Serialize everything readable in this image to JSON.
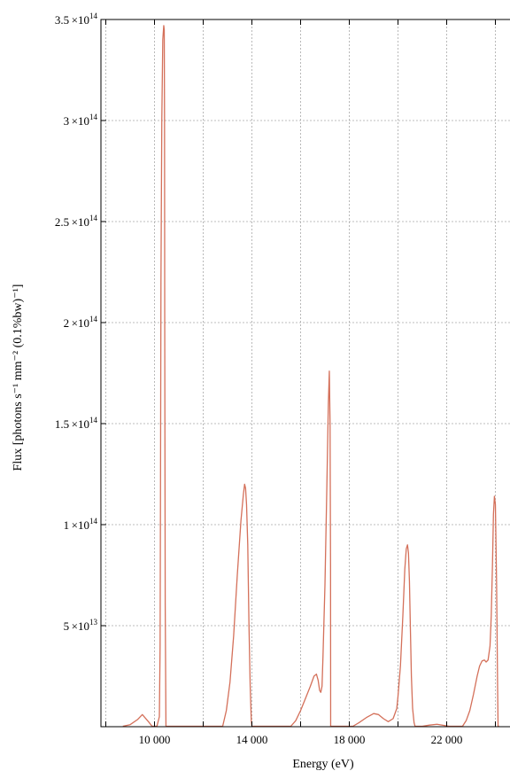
{
  "chart_data": {
    "type": "line",
    "xlabel": "Energy (eV)",
    "ylabel": "Flux [photons s⁻¹ mm⁻² (0.1%bw)⁻¹]",
    "xlim": [
      7800,
      24600
    ],
    "ylim": [
      0,
      350000000000000.0
    ],
    "grid": true,
    "x_ticks": [
      {
        "value": 10000,
        "label": "10 000"
      },
      {
        "value": 14000,
        "label": "14 000"
      },
      {
        "value": 18000,
        "label": "18 000"
      },
      {
        "value": 22000,
        "label": "22 000"
      }
    ],
    "x_minor_ticks": [
      8000,
      12000,
      16000,
      20000,
      24000
    ],
    "y_ticks": [
      {
        "value": 50000000000000.0,
        "mantissa": "5",
        "exp": "13"
      },
      {
        "value": 100000000000000.0,
        "mantissa": "1",
        "exp": "14"
      },
      {
        "value": 150000000000000.0,
        "mantissa": "1.5",
        "exp": "14"
      },
      {
        "value": 200000000000000.0,
        "mantissa": "2",
        "exp": "14"
      },
      {
        "value": 250000000000000.0,
        "mantissa": "2.5",
        "exp": "14"
      },
      {
        "value": 300000000000000.0,
        "mantissa": "3",
        "exp": "14"
      },
      {
        "value": 350000000000000.0,
        "mantissa": "3.5",
        "exp": "14"
      }
    ],
    "series": [
      {
        "color": "#d4705a",
        "x": [
          8700,
          9000,
          9300,
          9500,
          9750,
          9900,
          10000,
          10100,
          10200,
          10230,
          10245,
          10265,
          10300,
          10340,
          10380,
          10400,
          10412,
          10420,
          10440,
          10470,
          12800,
          12950,
          13100,
          13250,
          13400,
          13550,
          13650,
          13700,
          13740,
          13780,
          13830,
          13880,
          13930,
          13975,
          14000,
          14010,
          15600,
          15800,
          16000,
          16200,
          16400,
          16550,
          16650,
          16720,
          16780,
          16830,
          16880,
          16920,
          17000,
          17080,
          17140,
          17180,
          17210,
          17230,
          17235,
          17245,
          17260,
          18150,
          18400,
          18700,
          19000,
          19200,
          19400,
          19600,
          19800,
          19950,
          20000,
          20100,
          20200,
          20280,
          20340,
          20390,
          20430,
          20470,
          20510,
          20550,
          20600,
          20660,
          20700,
          20720,
          21000,
          21300,
          21600,
          21900,
          22100,
          22650,
          22800,
          22950,
          23100,
          23250,
          23350,
          23450,
          23550,
          23620,
          23700,
          23780,
          23830,
          23880,
          23920,
          23960,
          24000,
          24050,
          24090,
          24110,
          24130,
          24150
        ],
        "y": [
          0,
          1000000000000.0,
          3500000000000.0,
          6000000000000.0,
          2500000000000.0,
          0,
          0,
          0,
          5000000000000.0,
          40000000000000.0,
          110000000000000.0,
          220000000000000.0,
          300000000000000.0,
          340000000000000.0,
          347000000000000.0,
          345000000000000.0,
          300000000000000.0,
          200000000000000.0,
          60000000000000.0,
          0,
          0,
          8000000000000.0,
          22000000000000.0,
          45000000000000.0,
          75000000000000.0,
          102000000000000.0,
          115000000000000.0,
          120000000000000.0,
          118000000000000.0,
          110000000000000.0,
          90000000000000.0,
          50000000000000.0,
          20000000000000.0,
          3000000000000.0,
          0,
          0,
          0,
          3000000000000.0,
          8000000000000.0,
          14000000000000.0,
          20000000000000.0,
          25000000000000.0,
          26000000000000.0,
          23000000000000.0,
          18000000000000.0,
          17000000000000.0,
          20000000000000.0,
          35000000000000.0,
          70000000000000.0,
          120000000000000.0,
          160000000000000.0,
          176000000000000.0,
          150000000000000.0,
          80000000000000.0,
          0,
          0,
          0,
          0,
          2000000000000.0,
          4500000000000.0,
          6500000000000.0,
          6000000000000.0,
          4000000000000.0,
          2500000000000.0,
          4000000000000.0,
          9000000000000.0,
          15000000000000.0,
          30000000000000.0,
          55000000000000.0,
          78000000000000.0,
          88000000000000.0,
          90000000000000.0,
          86000000000000.0,
          72000000000000.0,
          48000000000000.0,
          25000000000000.0,
          9000000000000.0,
          2000000000000.0,
          0,
          0,
          0,
          800000000000.0,
          1200000000000.0,
          600000000000.0,
          0,
          0,
          3000000000000.0,
          8000000000000.0,
          16000000000000.0,
          25000000000000.0,
          30000000000000.0,
          32500000000000.0,
          33000000000000.0,
          32000000000000.0,
          33000000000000.0,
          40000000000000.0,
          55000000000000.0,
          80000000000000.0,
          105000000000000.0,
          114000000000000.0,
          110000000000000.0,
          70000000000000.0,
          20000000000000.0,
          0,
          0,
          0
        ]
      }
    ]
  }
}
